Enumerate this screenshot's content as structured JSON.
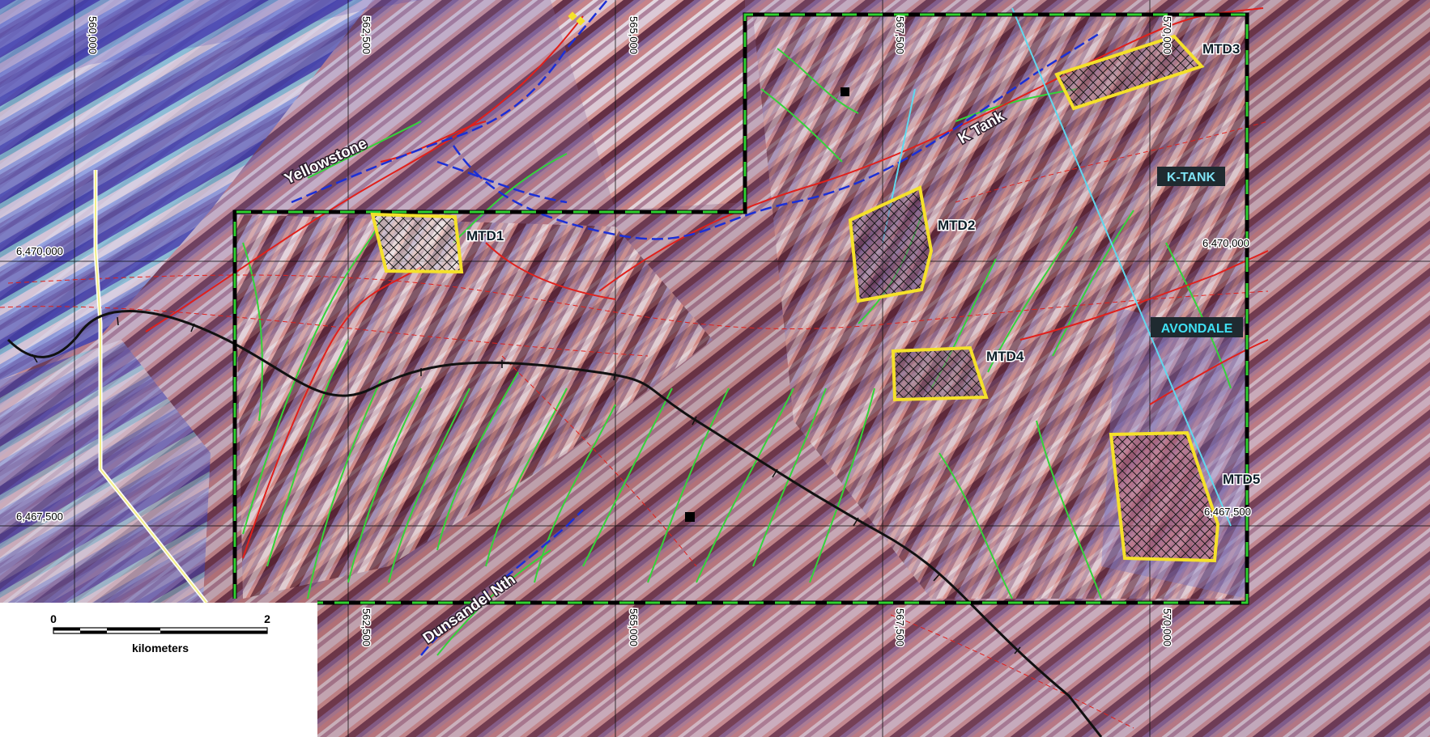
{
  "map": {
    "grid": {
      "easting_labels_top": [
        "560,000",
        "562,500",
        "565,000",
        "567,500",
        "570,000"
      ],
      "easting_labels_bottom": [
        "562,500",
        "565,000",
        "567,500",
        "570,000"
      ],
      "northing_labels_left": [
        "6,470,000",
        "6,467,500"
      ],
      "northing_labels_right": [
        "6,470,000",
        "6,467,500"
      ]
    },
    "targets": [
      {
        "id": "MTD1",
        "label": "MTD1"
      },
      {
        "id": "MTD2",
        "label": "MTD2"
      },
      {
        "id": "MTD3",
        "label": "MTD3"
      },
      {
        "id": "MTD4",
        "label": "MTD4"
      },
      {
        "id": "MTD5",
        "label": "MTD5"
      }
    ],
    "structures": {
      "yellowstone": "Yellowstone",
      "k_tank": "K Tank",
      "dunsandel": "Dunsandel Nth"
    },
    "tenements": {
      "k_tank": "K-TANK",
      "avondale": "AVONDALE"
    },
    "scale_bar": {
      "start": "0",
      "end": "2",
      "unit": "kilometers"
    },
    "colors": {
      "target_outline": "#f5e12a",
      "tenement_border": "#000000",
      "tenement_dash": "#2fd12f",
      "fault_red": "#e0201c",
      "fault_blue": "#1b2fd6",
      "contour_green": "#35d43a",
      "boundary_cyan": "#5fd8ee",
      "road_yellow": "#f4f08a",
      "railway": "#111111"
    }
  }
}
